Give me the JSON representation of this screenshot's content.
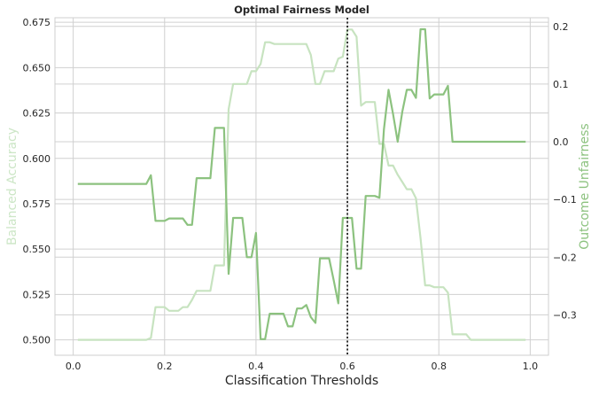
{
  "chart_data": {
    "type": "line",
    "title": "Optimal Fairness Model",
    "xlabel": "Classification Thresholds",
    "ylabel_left": "Balanced Accuracy",
    "ylabel_right": "Outcome Unfairness",
    "xlim": [
      -0.04,
      1.04
    ],
    "ylim_left": [
      0.4915,
      0.6775
    ],
    "ylim_right": [
      -0.37,
      0.215
    ],
    "x_ticks": [
      "0.0",
      "0.2",
      "0.4",
      "0.6",
      "0.8",
      "1.0"
    ],
    "y_left_ticks": [
      "0.500",
      "0.525",
      "0.550",
      "0.575",
      "0.600",
      "0.625",
      "0.650",
      "0.675"
    ],
    "y_right_ticks": [
      "0.2",
      "0.1",
      "0.0",
      "−0.1",
      "−0.2",
      "−0.3"
    ],
    "grid": true,
    "threshold_line": {
      "x": 0.6,
      "style": "dotted",
      "color": "#222222"
    },
    "colors": {
      "left_axis": "#cce6c6",
      "right_axis": "#8cc27f",
      "series_left": "#c7e3c0",
      "series_right": "#8cc27f",
      "grid": "#d0d0d0"
    },
    "series": [
      {
        "axis": "left",
        "x": [
          0.01,
          0.16,
          0.17,
          0.18,
          0.2,
          0.21,
          0.23,
          0.24,
          0.25,
          0.26,
          0.27,
          0.28,
          0.3,
          0.31,
          0.33,
          0.34,
          0.35,
          0.38,
          0.39,
          0.4,
          0.41,
          0.42,
          0.43,
          0.44,
          0.5,
          0.51,
          0.52,
          0.53,
          0.54,
          0.55,
          0.57,
          0.58,
          0.59,
          0.6,
          0.61,
          0.62,
          0.63,
          0.64,
          0.66,
          0.67,
          0.68,
          0.69,
          0.7,
          0.71,
          0.72,
          0.73,
          0.74,
          0.75,
          0.76,
          0.77,
          0.78,
          0.79,
          0.8,
          0.81,
          0.82,
          0.83,
          0.84,
          0.86,
          0.87,
          0.88,
          0.99
        ],
        "y": [
          0.5,
          0.5,
          0.501,
          0.518,
          0.518,
          0.516,
          0.516,
          0.518,
          0.518,
          0.522,
          0.527,
          0.527,
          0.527,
          0.541,
          0.541,
          0.627,
          0.641,
          0.641,
          0.648,
          0.648,
          0.652,
          0.664,
          0.664,
          0.663,
          0.663,
          0.663,
          0.657,
          0.641,
          0.641,
          0.648,
          0.648,
          0.655,
          0.656,
          0.671,
          0.671,
          0.667,
          0.629,
          0.631,
          0.631,
          0.608,
          0.608,
          0.596,
          0.596,
          0.591,
          0.587,
          0.583,
          0.583,
          0.578,
          0.556,
          0.53,
          0.53,
          0.529,
          0.529,
          0.529,
          0.526,
          0.503,
          0.503,
          0.503,
          0.5,
          0.5,
          0.5
        ]
      },
      {
        "axis": "right",
        "x": [
          0.01,
          0.16,
          0.17,
          0.18,
          0.2,
          0.21,
          0.23,
          0.24,
          0.25,
          0.26,
          0.27,
          0.28,
          0.29,
          0.3,
          0.31,
          0.32,
          0.33,
          0.34,
          0.35,
          0.37,
          0.38,
          0.39,
          0.4,
          0.41,
          0.42,
          0.43,
          0.44,
          0.45,
          0.46,
          0.47,
          0.48,
          0.49,
          0.5,
          0.51,
          0.52,
          0.53,
          0.54,
          0.55,
          0.56,
          0.57,
          0.58,
          0.59,
          0.6,
          0.61,
          0.62,
          0.63,
          0.64,
          0.65,
          0.66,
          0.67,
          0.68,
          0.69,
          0.7,
          0.71,
          0.72,
          0.73,
          0.74,
          0.75,
          0.76,
          0.77,
          0.78,
          0.79,
          0.8,
          0.81,
          0.82,
          0.83,
          0.84,
          0.99
        ],
        "y": [
          -0.073,
          -0.073,
          -0.058,
          -0.137,
          -0.137,
          -0.133,
          -0.133,
          -0.133,
          -0.144,
          -0.144,
          -0.063,
          -0.063,
          -0.063,
          -0.063,
          0.024,
          0.024,
          0.024,
          -0.229,
          -0.132,
          -0.132,
          -0.2,
          -0.2,
          -0.158,
          -0.342,
          -0.342,
          -0.298,
          -0.298,
          -0.298,
          -0.298,
          -0.32,
          -0.32,
          -0.289,
          -0.289,
          -0.283,
          -0.304,
          -0.314,
          -0.202,
          -0.202,
          -0.202,
          -0.24,
          -0.28,
          -0.132,
          -0.132,
          -0.132,
          -0.22,
          -0.22,
          -0.094,
          -0.094,
          -0.094,
          -0.097,
          0.022,
          0.09,
          0.048,
          0.0,
          0.052,
          0.09,
          0.09,
          0.076,
          0.195,
          0.195,
          0.075,
          0.082,
          0.082,
          0.082,
          0.097,
          0.0,
          0.0,
          0.0
        ]
      }
    ]
  }
}
